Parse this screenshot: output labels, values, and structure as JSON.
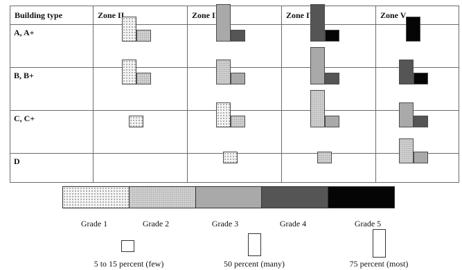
{
  "header": {
    "building_type": "Building type",
    "zones": [
      "Zone II",
      "Zone III",
      "Zone IV",
      "Zone V"
    ]
  },
  "rows": [
    {
      "label": "A, A+",
      "cells": [
        [
          {
            "grade": 1,
            "size": "many"
          },
          {
            "grade": 2,
            "size": "few"
          }
        ],
        [
          {
            "grade": 3,
            "size": "most"
          },
          {
            "grade": 4,
            "size": "few"
          }
        ],
        [
          {
            "grade": 4,
            "size": "most"
          },
          {
            "grade": 5,
            "size": "few"
          }
        ],
        [
          {
            "grade": 5,
            "size": "many"
          }
        ]
      ]
    },
    {
      "label": "B, B+",
      "cells": [
        [
          {
            "grade": 1,
            "size": "many"
          },
          {
            "grade": 2,
            "size": "few"
          }
        ],
        [
          {
            "grade": 2,
            "size": "many"
          },
          {
            "grade": 3,
            "size": "few"
          }
        ],
        [
          {
            "grade": 3,
            "size": "most"
          },
          {
            "grade": 4,
            "size": "few"
          }
        ],
        [
          {
            "grade": 4,
            "size": "many"
          },
          {
            "grade": 5,
            "size": "few"
          }
        ]
      ]
    },
    {
      "label": "C, C+",
      "cells": [
        [
          {
            "grade": 1,
            "size": "few"
          }
        ],
        [
          {
            "grade": 1,
            "size": "many"
          },
          {
            "grade": 2,
            "size": "few"
          }
        ],
        [
          {
            "grade": 2,
            "size": "most"
          },
          {
            "grade": 3,
            "size": "few"
          }
        ],
        [
          {
            "grade": 3,
            "size": "many"
          },
          {
            "grade": 4,
            "size": "few"
          }
        ]
      ]
    },
    {
      "label": "D",
      "cells": [
        [],
        [
          {
            "grade": 1,
            "size": "few"
          }
        ],
        [
          {
            "grade": 2,
            "size": "few"
          }
        ],
        [
          {
            "grade": 2,
            "size": "many"
          },
          {
            "grade": 3,
            "size": "few"
          }
        ]
      ]
    }
  ],
  "legend": {
    "grades": [
      {
        "label": "Grade 1",
        "color": "#f5f5f5"
      },
      {
        "label": "Grade 2",
        "color": "#d4d4d4"
      },
      {
        "label": "Grade 3",
        "color": "#a9a9a9"
      },
      {
        "label": "Grade 4",
        "color": "#555555"
      },
      {
        "label": "Grade 5",
        "color": "#050505"
      }
    ],
    "sizes": [
      {
        "key": "few",
        "label": "5 to 15 percent (few)"
      },
      {
        "key": "many",
        "label": "50 percent (many)"
      },
      {
        "key": "most",
        "label": "75 percent (most)"
      }
    ]
  }
}
